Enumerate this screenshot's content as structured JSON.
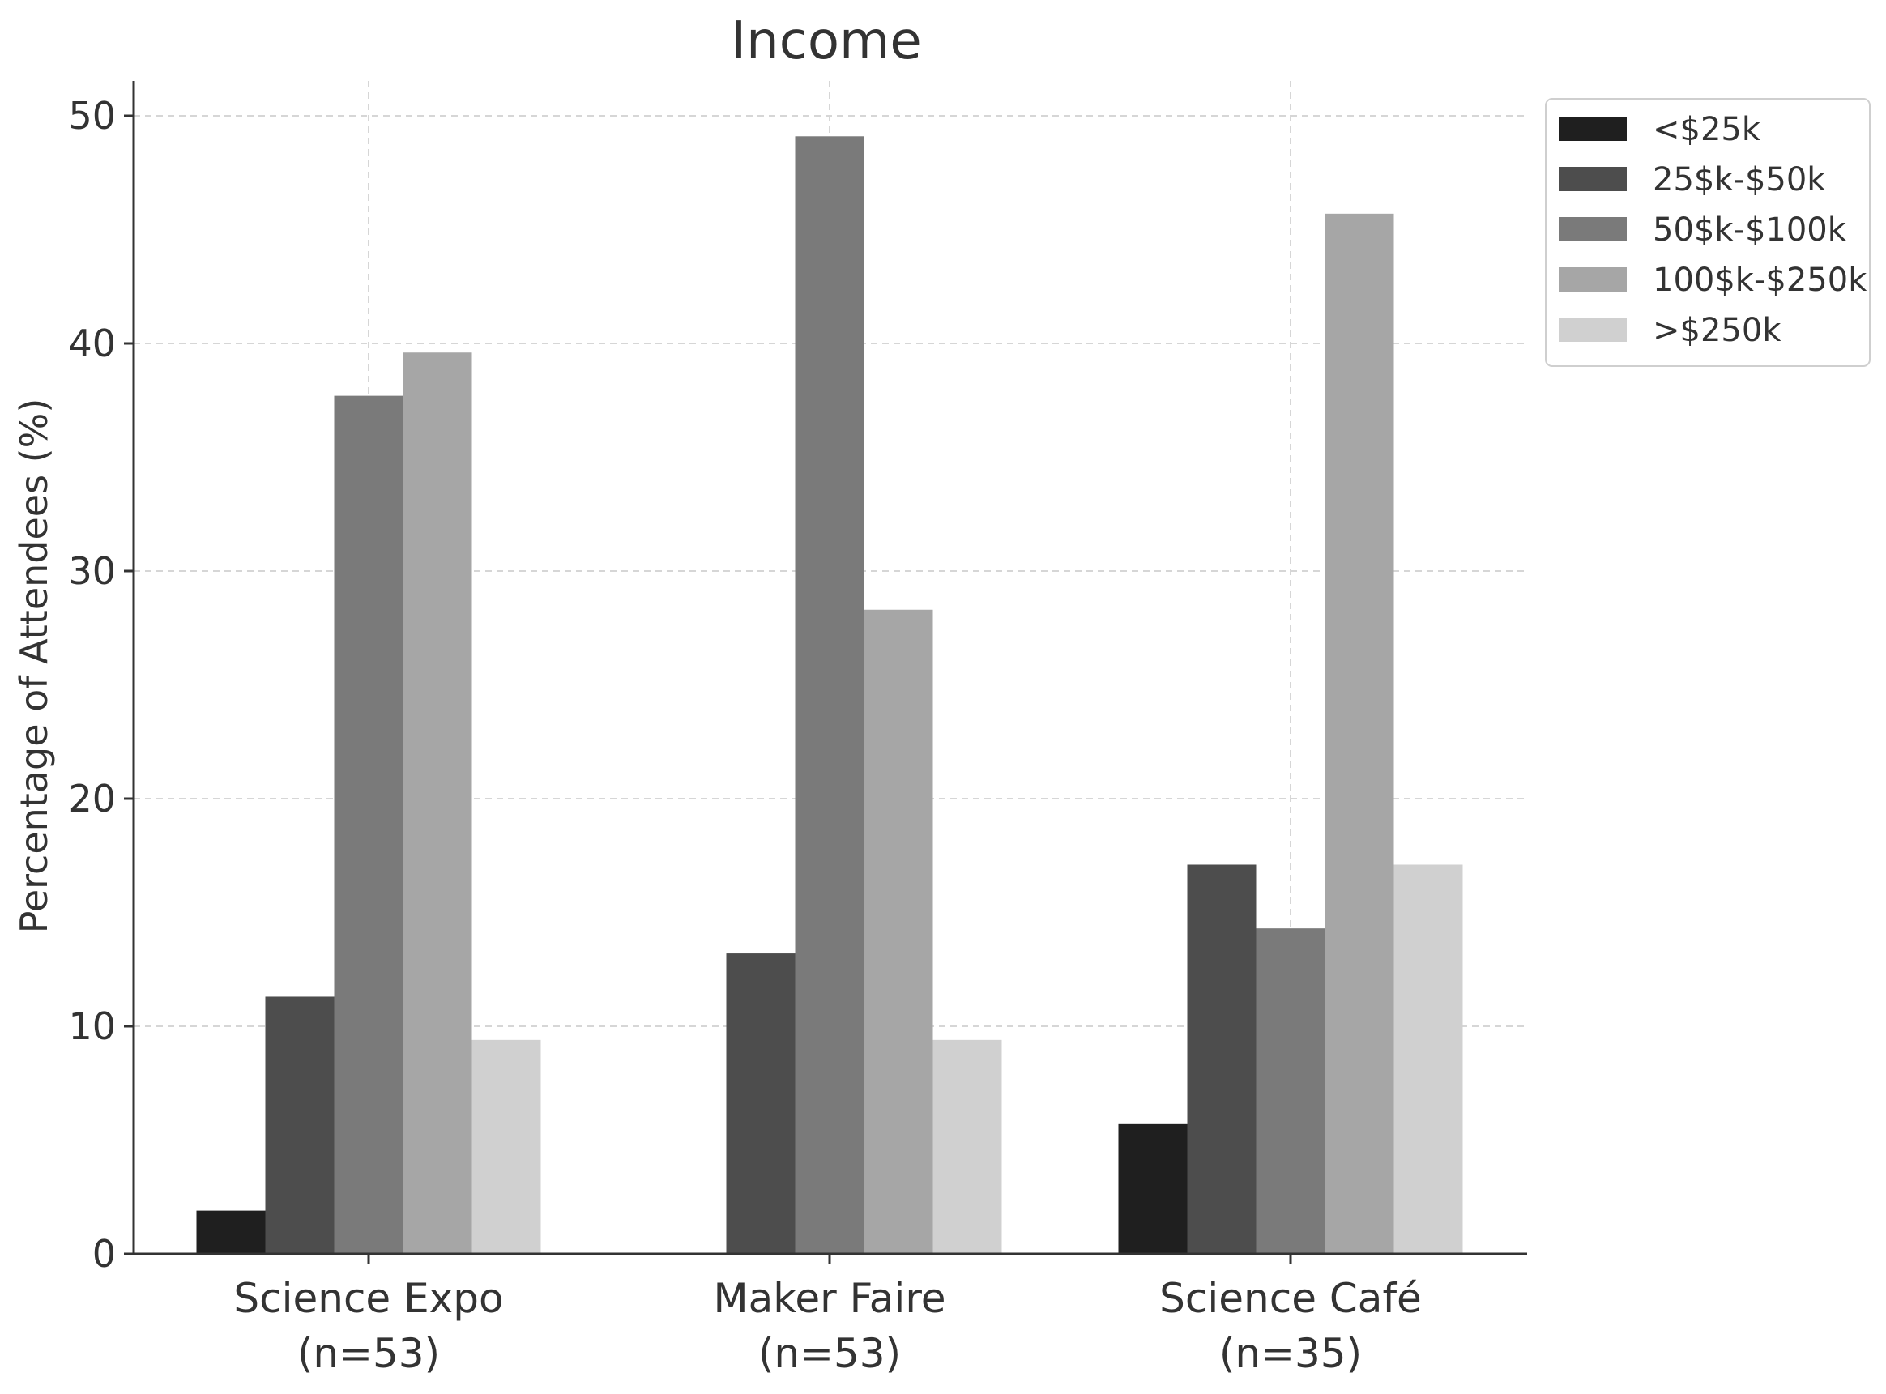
{
  "chart_data": {
    "type": "bar",
    "title": "Income",
    "xlabel": "",
    "ylabel": "Percentage of Attendees (%)",
    "ylim": [
      0,
      52
    ],
    "yticks": [
      "0",
      "10",
      "20",
      "30",
      "40",
      "50"
    ],
    "categories": [
      {
        "name": "Science Expo",
        "n": "(n=53)"
      },
      {
        "name": "Maker Faire",
        "n": "(n=53)"
      },
      {
        "name": "Science Café",
        "n": "(n=35)"
      }
    ],
    "series": [
      {
        "name": "<$25k",
        "color": "#1f1f1f",
        "values": [
          1.9,
          0.0,
          5.7
        ]
      },
      {
        "name": "25$k-$50k",
        "color": "#4d4d4d",
        "values": [
          11.3,
          13.2,
          17.1
        ]
      },
      {
        "name": "50$k-$100k",
        "color": "#7a7a7a",
        "values": [
          37.7,
          49.1,
          14.3
        ]
      },
      {
        "name": "100$k-$250k",
        "color": "#a6a6a6",
        "values": [
          39.6,
          28.3,
          45.7
        ]
      },
      {
        "name": ">$250k",
        "color": "#d0d0d0",
        "values": [
          9.4,
          9.4,
          17.1
        ]
      }
    ],
    "grid": true,
    "legend_position": "outside-top-right"
  }
}
